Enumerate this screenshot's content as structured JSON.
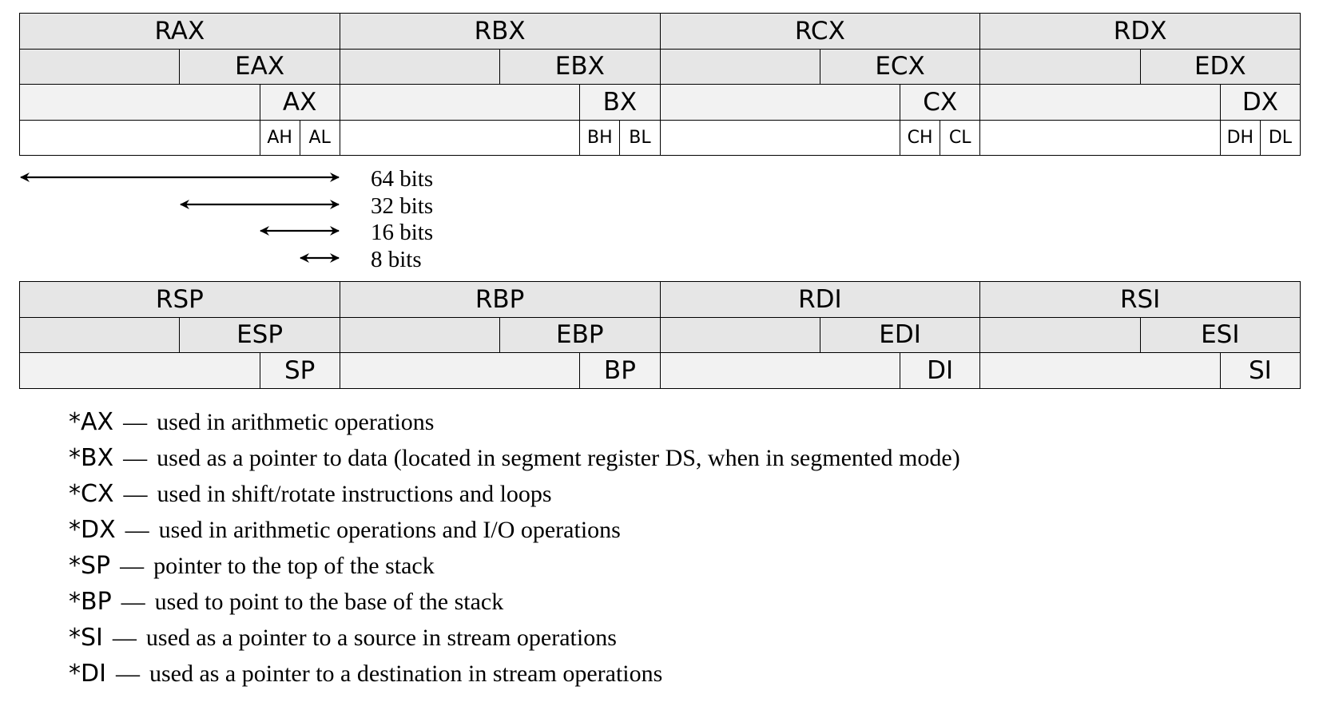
{
  "general_registers": [
    {
      "r64": "RAX",
      "r32": "EAX",
      "r16": "AX",
      "hi8": "AH",
      "lo8": "AL"
    },
    {
      "r64": "RBX",
      "r32": "EBX",
      "r16": "BX",
      "hi8": "BH",
      "lo8": "BL"
    },
    {
      "r64": "RCX",
      "r32": "ECX",
      "r16": "CX",
      "hi8": "CH",
      "lo8": "CL"
    },
    {
      "r64": "RDX",
      "r32": "EDX",
      "r16": "DX",
      "hi8": "DH",
      "lo8": "DL"
    }
  ],
  "pointer_registers": [
    {
      "r64": "RSP",
      "r32": "ESP",
      "r16": "SP"
    },
    {
      "r64": "RBP",
      "r32": "EBP",
      "r16": "BP"
    },
    {
      "r64": "RDI",
      "r32": "EDI",
      "r16": "DI"
    },
    {
      "r64": "RSI",
      "r32": "ESI",
      "r16": "SI"
    }
  ],
  "bit_widths": [
    "64 bits",
    "32 bits",
    "16 bits",
    "8 bits"
  ],
  "notes": [
    {
      "reg": "*AX",
      "dash": "—",
      "desc": "used in arithmetic operations"
    },
    {
      "reg": "*BX",
      "dash": "—",
      "desc": "used as a pointer to data (located in segment register DS, when in segmented mode)"
    },
    {
      "reg": "*CX",
      "dash": "—",
      "desc": "used in shift/rotate instructions and loops"
    },
    {
      "reg": "*DX",
      "dash": "—",
      "desc": "used in arithmetic operations and I/O operations"
    },
    {
      "reg": "*SP",
      "dash": "—",
      "desc": "pointer to the top of the stack"
    },
    {
      "reg": "*BP",
      "dash": "—",
      "desc": "used to point to the base of the stack"
    },
    {
      "reg": "*SI",
      "dash": "—",
      "desc": "used as a pointer to a source in stream operations"
    },
    {
      "reg": "*DI",
      "dash": "—",
      "desc": "used as a pointer to a destination in stream operations"
    }
  ],
  "colors": {
    "row_64_bg": "#e6e6e6",
    "row_32_bg": "#e6e6e6",
    "row_16_bg": "#f2f2f2",
    "row_8_bg": "#ffffff",
    "line": "#000000"
  }
}
